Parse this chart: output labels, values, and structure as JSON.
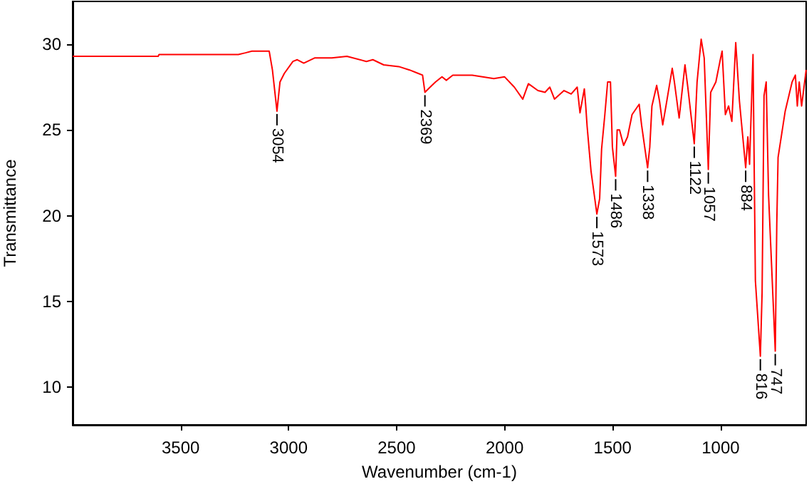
{
  "chart_data": {
    "type": "line",
    "xlabel": "Wavenumber (cm-1)",
    "ylabel": "Transmittance",
    "xlim": [
      4000,
      604
    ],
    "ylim": [
      7.8,
      32.5
    ],
    "xticks": [
      3500,
      3000,
      2500,
      2000,
      1500,
      1000
    ],
    "yticks": [
      10,
      15,
      20,
      25,
      30
    ],
    "marker": "none",
    "line_style": "solid",
    "series": [
      {
        "color": "#ff0000",
        "x": [
          4000,
          3604,
          3600,
          3233,
          3200,
          3170,
          3090,
          3075,
          3054,
          3040,
          3020,
          2980,
          2960,
          2930,
          2880,
          2800,
          2730,
          2640,
          2610,
          2560,
          2490,
          2440,
          2400,
          2380,
          2369,
          2345,
          2320,
          2290,
          2270,
          2240,
          2150,
          2050,
          2000,
          1955,
          1916,
          1890,
          1846,
          1813,
          1791,
          1769,
          1725,
          1692,
          1664,
          1651,
          1631,
          1625,
          1618,
          1600,
          1588,
          1573,
          1560,
          1551,
          1536,
          1523,
          1510,
          1501,
          1486,
          1479,
          1468,
          1449,
          1431,
          1410,
          1377,
          1366,
          1338,
          1328,
          1318,
          1296,
          1283,
          1268,
          1253,
          1224,
          1214,
          1192,
          1165,
          1152,
          1122,
          1109,
          1090,
          1076,
          1057,
          1046,
          1022,
          1000,
          993,
          978,
          963,
          948,
          930,
          913,
          884,
          874,
          866,
          850,
          839,
          816,
          808,
          799,
          789,
          778,
          747,
          740,
          734,
          701,
          669,
          654,
          645,
          636,
          625,
          604
        ],
        "values": [
          29.3,
          29.3,
          29.4,
          29.4,
          29.5,
          29.6,
          29.6,
          28.5,
          26.1,
          27.8,
          28.3,
          29.0,
          29.1,
          28.9,
          29.2,
          29.2,
          29.3,
          29.0,
          29.1,
          28.8,
          28.7,
          28.5,
          28.3,
          28.2,
          27.2,
          27.5,
          27.8,
          28.1,
          27.9,
          28.2,
          28.2,
          28.0,
          28.1,
          27.5,
          26.8,
          27.7,
          27.3,
          27.2,
          27.5,
          26.8,
          27.3,
          27.1,
          27.5,
          26.0,
          27.4,
          26.5,
          25.2,
          22.6,
          21.5,
          20.1,
          21.0,
          23.9,
          25.9,
          27.8,
          27.8,
          24.0,
          22.3,
          25.0,
          25.0,
          24.1,
          24.6,
          25.9,
          26.5,
          25.3,
          22.8,
          24.0,
          26.4,
          27.6,
          26.7,
          25.3,
          26.4,
          28.6,
          27.8,
          25.7,
          28.8,
          27.5,
          24.2,
          27.8,
          30.3,
          29.2,
          22.7,
          27.2,
          27.8,
          29.2,
          29.6,
          25.9,
          26.4,
          25.5,
          30.1,
          26.7,
          22.8,
          24.6,
          23.0,
          29.4,
          16.2,
          11.8,
          15.5,
          27.0,
          27.8,
          21.2,
          12.1,
          19.5,
          23.4,
          26.1,
          27.8,
          28.2,
          26.4,
          27.8,
          26.4,
          28.5
        ]
      }
    ],
    "annotations": [
      {
        "text": "3054",
        "x": 3054,
        "y": 26.1
      },
      {
        "text": "2369",
        "x": 2369,
        "y": 27.2
      },
      {
        "text": "1573",
        "x": 1573,
        "y": 20.1
      },
      {
        "text": "1486",
        "x": 1486,
        "y": 22.3
      },
      {
        "text": "1338",
        "x": 1338,
        "y": 22.8
      },
      {
        "text": "1122",
        "x": 1122,
        "y": 24.2
      },
      {
        "text": "1057",
        "x": 1057,
        "y": 22.7
      },
      {
        "text": "884",
        "x": 884,
        "y": 22.8
      },
      {
        "text": "816",
        "x": 816,
        "y": 11.8
      },
      {
        "text": "747",
        "x": 747,
        "y": 12.1
      }
    ]
  }
}
